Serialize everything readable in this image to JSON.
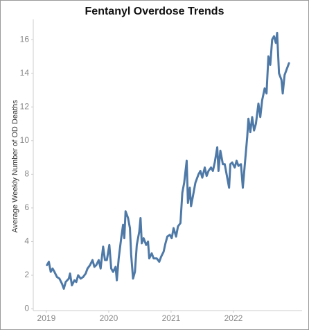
{
  "chart_data": {
    "type": "line",
    "title": "Fentanyl Overdose Trends",
    "y_label": "Average Weekly Number of OD Deaths",
    "color": "#4e79a7",
    "grid": false,
    "xlim": [
      2018.79,
      2023.1
    ],
    "xticks": [
      2019,
      2020,
      2021,
      2022
    ],
    "ylim": [
      -0.1,
      17.2
    ],
    "yticks": [
      0,
      2,
      4,
      6,
      8,
      10,
      12,
      14,
      16
    ],
    "x": [
      2019.01,
      2019.04,
      2019.07,
      2019.1,
      2019.13,
      2019.17,
      2019.21,
      2019.25,
      2019.28,
      2019.31,
      2019.36,
      2019.38,
      2019.41,
      2019.45,
      2019.48,
      2019.51,
      2019.55,
      2019.59,
      2019.63,
      2019.66,
      2019.7,
      2019.74,
      2019.77,
      2019.8,
      2019.84,
      2019.87,
      2019.91,
      2019.94,
      2019.97,
      2020.01,
      2020.04,
      2020.07,
      2020.11,
      2020.13,
      2020.16,
      2020.2,
      2020.23,
      2020.25,
      2020.27,
      2020.31,
      2020.34,
      2020.36,
      2020.39,
      2020.42,
      2020.45,
      2020.49,
      2020.51,
      2020.53,
      2020.56,
      2020.6,
      2020.63,
      2020.65,
      2020.69,
      2020.72,
      2020.77,
      2020.81,
      2020.84,
      2020.88,
      2020.91,
      2020.94,
      2020.98,
      2021.01,
      2021.04,
      2021.08,
      2021.11,
      2021.15,
      2021.18,
      2021.21,
      2021.25,
      2021.27,
      2021.3,
      2021.32,
      2021.36,
      2021.39,
      2021.44,
      2021.47,
      2021.5,
      2021.54,
      2021.57,
      2021.6,
      2021.64,
      2021.67,
      2021.7,
      2021.74,
      2021.76,
      2021.79,
      2021.83,
      2021.86,
      2021.89,
      2021.93,
      2021.95,
      2021.98,
      2022.02,
      2022.05,
      2022.08,
      2022.12,
      2022.15,
      2022.18,
      2022.22,
      2022.24,
      2022.27,
      2022.3,
      2022.33,
      2022.36,
      2022.4,
      2022.43,
      2022.46,
      2022.5,
      2022.53,
      2022.56,
      2022.59,
      2022.62,
      2022.65,
      2022.68,
      2022.7,
      2022.73,
      2022.77,
      2022.79,
      2022.82,
      2022.85,
      2022.89
    ],
    "values": [
      2.6,
      2.8,
      2.2,
      2.4,
      2.2,
      1.9,
      1.8,
      1.5,
      1.2,
      1.6,
      1.8,
      2.1,
      1.4,
      1.7,
      1.6,
      2.0,
      1.8,
      1.9,
      2.1,
      2.4,
      2.6,
      2.9,
      2.5,
      2.6,
      2.9,
      2.4,
      3.7,
      2.9,
      2.9,
      3.8,
      2.4,
      2.2,
      2.5,
      1.7,
      3.0,
      4.2,
      5.0,
      4.2,
      5.8,
      5.4,
      4.8,
      3.2,
      1.8,
      2.2,
      3.8,
      4.6,
      5.4,
      3.9,
      4.2,
      3.8,
      4.0,
      3.0,
      3.3,
      3.0,
      3.0,
      2.8,
      3.1,
      3.4,
      3.9,
      4.3,
      4.4,
      4.2,
      4.8,
      4.3,
      4.9,
      5.1,
      6.9,
      7.5,
      8.8,
      6.3,
      7.2,
      6.1,
      6.9,
      7.5,
      8.0,
      8.2,
      7.8,
      8.4,
      7.9,
      8.2,
      8.4,
      8.2,
      8.7,
      9.6,
      8.2,
      9.4,
      8.6,
      8.6,
      8.0,
      7.2,
      8.6,
      8.7,
      8.4,
      8.8,
      8.5,
      8.6,
      7.2,
      8.5,
      10.2,
      11.3,
      10.5,
      11.4,
      10.6,
      11.0,
      12.2,
      11.4,
      12.4,
      13.1,
      12.8,
      15.0,
      14.5,
      16.0,
      16.2,
      15.8,
      16.4,
      14.0,
      13.6,
      12.8,
      13.9,
      14.2,
      14.6
    ]
  }
}
